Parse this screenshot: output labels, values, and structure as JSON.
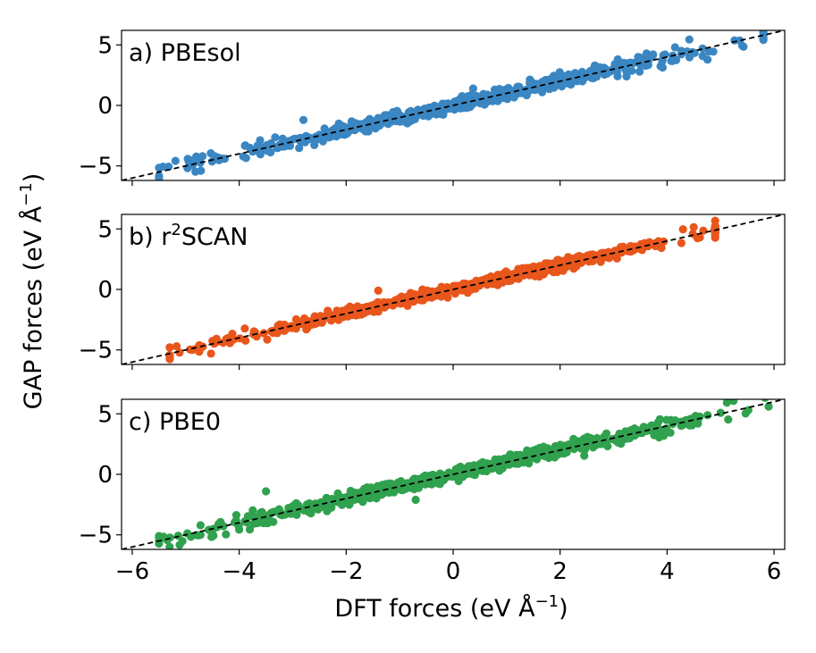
{
  "chart_data": {
    "type": "scatter",
    "xlabel": "DFT forces (eV Å",
    "xlabel_sup": "−1",
    "xlabel_close": ")",
    "ylabel": "GAP forces (eV Å",
    "ylabel_sup": "−1",
    "ylabel_close": ")",
    "xlim": [
      -6.2,
      6.2
    ],
    "ylim": [
      -6.2,
      6.2
    ],
    "x_ticks": [
      -6,
      -4,
      -2,
      0,
      2,
      4,
      6
    ],
    "x_tick_labels": [
      "−6",
      "−4",
      "−2",
      "0",
      "2",
      "4",
      "6"
    ],
    "y_ticks": [
      -5,
      0,
      5
    ],
    "y_tick_labels": [
      "−5",
      "0",
      "5"
    ],
    "reference_line": "y = x (dashed)",
    "panels": [
      {
        "label": "a) PBEsol",
        "color": "#3a86c2",
        "x_range": [
          -5.5,
          5.8
        ],
        "noise": 0.35,
        "n_points": 700,
        "seed": 11,
        "outliers": [
          {
            "x": -5.5,
            "y": -6.0
          },
          {
            "x": -2.8,
            "y": -1.2
          },
          {
            "x": 5.8,
            "y": 5.4
          }
        ]
      },
      {
        "label": "b) r",
        "label_sup": "2",
        "label_rest": "SCAN",
        "color": "#e8561c",
        "x_range": [
          -5.3,
          4.9
        ],
        "noise": 0.3,
        "n_points": 700,
        "seed": 23,
        "outliers": [
          {
            "x": -5.3,
            "y": -4.8
          },
          {
            "x": -4.3,
            "y": -4.4
          },
          {
            "x": -1.4,
            "y": -0.1
          }
        ]
      },
      {
        "label": "c) PBE0",
        "color": "#30a14e",
        "x_range": [
          -5.5,
          5.9
        ],
        "noise": 0.35,
        "n_points": 700,
        "seed": 37,
        "outliers": [
          {
            "x": -3.5,
            "y": -1.4
          },
          {
            "x": -0.7,
            "y": -2.1
          },
          {
            "x": 5.9,
            "y": 5.6
          },
          {
            "x": -5.5,
            "y": -5.1
          }
        ]
      }
    ]
  }
}
